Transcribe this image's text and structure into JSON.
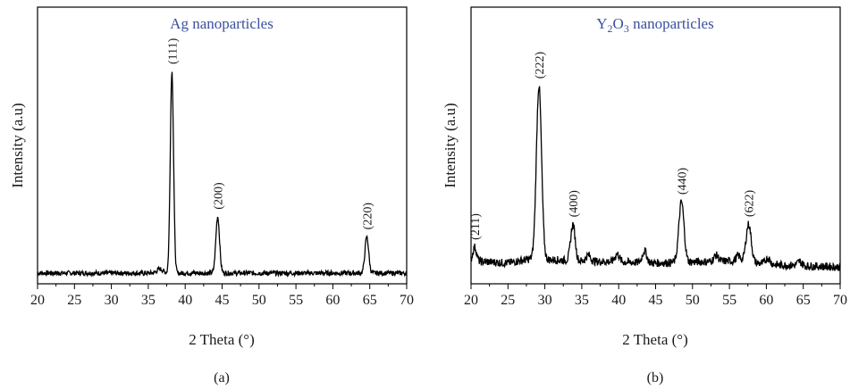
{
  "chart_data": [
    {
      "type": "line",
      "panel_label": "(a)",
      "title": "Ag nanoparticles",
      "xlabel": "2 Theta (°)",
      "ylabel": "Intensity (a.u)",
      "xlim": [
        20,
        70
      ],
      "x_ticks": [
        20,
        25,
        30,
        35,
        40,
        45,
        50,
        55,
        60,
        65,
        70
      ],
      "y_ticks_shown": false,
      "grid": false,
      "line_color": "#000000",
      "title_color": "#3a4fa0",
      "baseline": 0.0,
      "noise": 0.012,
      "baseline_points": [
        [
          20,
          0.0
        ],
        [
          70,
          0.0
        ]
      ],
      "peaks": [
        {
          "label": "(111)",
          "center": 38.2,
          "height": 1.0,
          "width": 0.22
        },
        {
          "label": "(200)",
          "center": 44.4,
          "height": 0.28,
          "width": 0.25
        },
        {
          "label": "(220)",
          "center": 64.6,
          "height": 0.18,
          "width": 0.25
        }
      ],
      "minor_peaks": [
        {
          "center": 36.6,
          "height": 0.02,
          "width": 0.4
        }
      ]
    },
    {
      "type": "line",
      "panel_label": "(b)",
      "title_main": "Y",
      "title_sub1": "2",
      "title_mid": "O",
      "title_sub2": "3",
      "title_tail": " nanoparticles",
      "xlabel": "2 Theta (°)",
      "ylabel": "Intensity (a.u)",
      "xlim": [
        20,
        70
      ],
      "x_ticks": [
        20,
        25,
        30,
        35,
        40,
        45,
        50,
        55,
        60,
        65,
        70
      ],
      "y_ticks_shown": false,
      "grid": false,
      "line_color": "#000000",
      "title_color": "#3a4fa0",
      "noise": 0.02,
      "baseline_points": [
        [
          20,
          0.06
        ],
        [
          25,
          0.05
        ],
        [
          28,
          0.07
        ],
        [
          35,
          0.06
        ],
        [
          45,
          0.05
        ],
        [
          55,
          0.06
        ],
        [
          62,
          0.04
        ],
        [
          70,
          0.03
        ]
      ],
      "peaks": [
        {
          "label": "(211)",
          "center": 20.5,
          "height": 0.07,
          "width": 0.25
        },
        {
          "label": "(222)",
          "center": 29.2,
          "height": 0.86,
          "width": 0.35
        },
        {
          "label": "(400)",
          "center": 33.8,
          "height": 0.18,
          "width": 0.3
        },
        {
          "label": "(440)",
          "center": 48.5,
          "height": 0.3,
          "width": 0.35
        },
        {
          "label": "(622)",
          "center": 57.6,
          "height": 0.19,
          "width": 0.35
        }
      ],
      "minor_peaks": [
        {
          "center": 35.9,
          "height": 0.03,
          "width": 0.3
        },
        {
          "center": 39.8,
          "height": 0.04,
          "width": 0.3
        },
        {
          "center": 43.5,
          "height": 0.06,
          "width": 0.3
        },
        {
          "center": 53.2,
          "height": 0.03,
          "width": 0.3
        },
        {
          "center": 56.2,
          "height": 0.03,
          "width": 0.3
        },
        {
          "center": 60.2,
          "height": 0.03,
          "width": 0.3
        },
        {
          "center": 64.5,
          "height": 0.02,
          "width": 0.3
        }
      ]
    }
  ]
}
